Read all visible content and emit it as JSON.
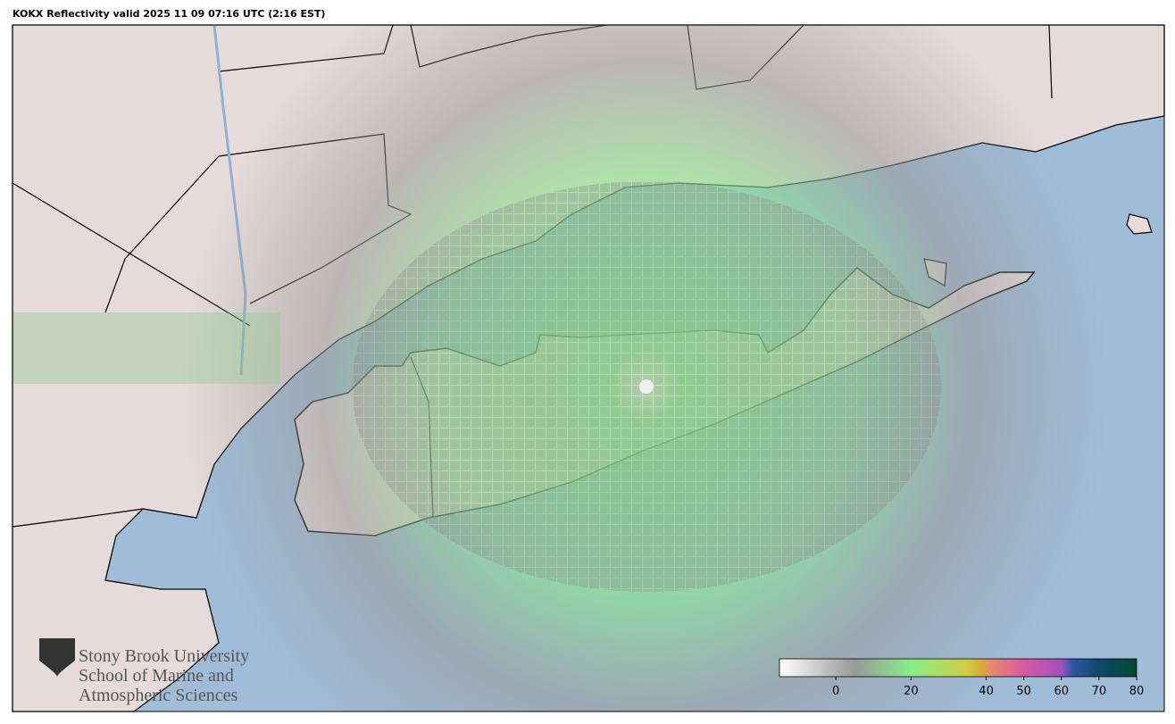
{
  "title": "KOKX Reflectivity valid 2025 11 09 07:16 UTC (2:16 EST)",
  "logo": {
    "lines": [
      "Stony Brook University",
      "School of Marine and",
      "Atmospheric Sciences"
    ]
  },
  "colorbar": {
    "lim": [
      -15,
      80
    ],
    "ticks": [
      0,
      20,
      40,
      50,
      60,
      70,
      80
    ],
    "stops": [
      {
        "value": -15,
        "color": "#ffffff"
      },
      {
        "value": 5,
        "color": "#999999"
      },
      {
        "value": 20,
        "color": "#88ee88"
      },
      {
        "value": 35,
        "color": "#d2cc44"
      },
      {
        "value": 39,
        "color": "#d8a838"
      },
      {
        "value": 41,
        "color": "#e48c6c"
      },
      {
        "value": 50,
        "color": "#d85aa0"
      },
      {
        "value": 60,
        "color": "#a050c0"
      },
      {
        "value": 63,
        "color": "#2c58a0"
      },
      {
        "value": 70,
        "color": "#10486a"
      },
      {
        "value": 80,
        "color": "#004830"
      }
    ]
  }
}
